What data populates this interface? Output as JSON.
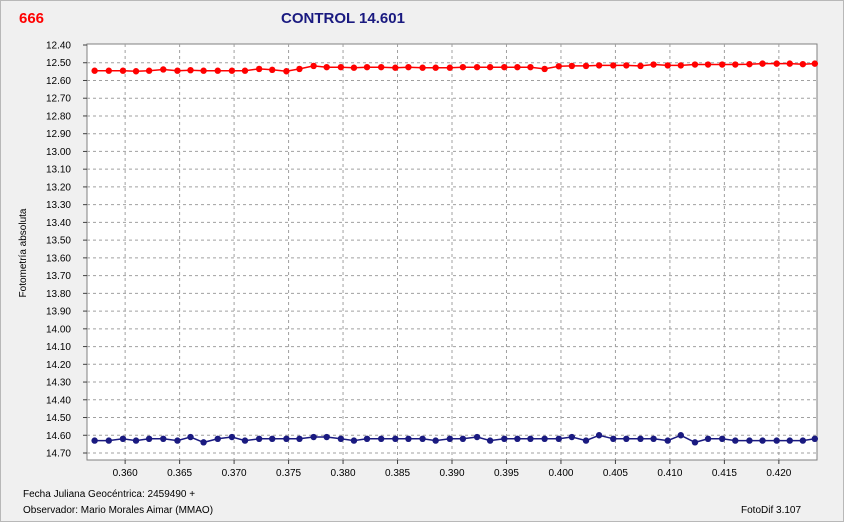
{
  "header": {
    "object_id": "666",
    "control_label": "CONTROL 14.601"
  },
  "footer": {
    "date_label": "Fecha Juliana Geocéntrica:  2459490 +",
    "observer_label": "Observador: Mario Morales Aimar (MMAO)",
    "software_label": "FotoDif 3.107"
  },
  "colors": {
    "object_series": "#ff0000",
    "control_series": "#1a1a80",
    "object_title": "#ff0000",
    "control_title": "#1a1a80",
    "grid": "#a0a0a0"
  },
  "chart_data": {
    "type": "line",
    "title": "CONTROL 14.601",
    "xlabel": "",
    "ylabel": "Fotometría absoluta",
    "xlim": [
      0.3565,
      0.4235
    ],
    "ylim": [
      12.4,
      14.7
    ],
    "y_inverted": true,
    "grid": true,
    "x_ticks": [
      "0.360",
      "0.365",
      "0.370",
      "0.375",
      "0.380",
      "0.385",
      "0.390",
      "0.395",
      "0.400",
      "0.405",
      "0.410",
      "0.415",
      "0.420"
    ],
    "y_ticks": [
      "12.40",
      "12.50",
      "12.60",
      "12.70",
      "12.80",
      "12.90",
      "13.00",
      "13.10",
      "13.20",
      "13.30",
      "13.40",
      "13.50",
      "13.60",
      "13.70",
      "13.80",
      "13.90",
      "14.00",
      "14.10",
      "14.20",
      "14.30",
      "14.40",
      "14.50",
      "14.60",
      "14.70"
    ],
    "series": [
      {
        "x": [
          0.3572,
          0.3585,
          0.3598,
          0.361,
          0.3622,
          0.3635,
          0.3648,
          0.366,
          0.3672,
          0.3685,
          0.3698,
          0.371,
          0.3723,
          0.3735,
          0.3748,
          0.376,
          0.3773,
          0.3785,
          0.3798,
          0.381,
          0.3822,
          0.3835,
          0.3848,
          0.386,
          0.3873,
          0.3885,
          0.3898,
          0.391,
          0.3923,
          0.3935,
          0.3948,
          0.396,
          0.3972,
          0.3985,
          0.3998,
          0.401,
          0.4023,
          0.4035,
          0.4048,
          0.406,
          0.4073,
          0.4085,
          0.4098,
          0.411,
          0.4123,
          0.4135,
          0.4148,
          0.416,
          0.4173,
          0.4185,
          0.4198,
          0.421,
          0.4222,
          0.4233
        ],
        "values": [
          12.545,
          12.545,
          12.545,
          12.548,
          12.545,
          12.538,
          12.545,
          12.542,
          12.545,
          12.545,
          12.545,
          12.545,
          12.535,
          12.54,
          12.548,
          12.535,
          12.518,
          12.525,
          12.525,
          12.528,
          12.525,
          12.525,
          12.528,
          12.525,
          12.528,
          12.528,
          12.528,
          12.525,
          12.525,
          12.525,
          12.525,
          12.525,
          12.525,
          12.535,
          12.52,
          12.518,
          12.518,
          12.515,
          12.515,
          12.515,
          12.518,
          12.51,
          12.515,
          12.515,
          12.51,
          12.51,
          12.51,
          12.51,
          12.508,
          12.505,
          12.505,
          12.505,
          12.508,
          12.505
        ]
      },
      {
        "x": [
          0.3572,
          0.3585,
          0.3598,
          0.361,
          0.3622,
          0.3635,
          0.3648,
          0.366,
          0.3672,
          0.3685,
          0.3698,
          0.371,
          0.3723,
          0.3735,
          0.3748,
          0.376,
          0.3773,
          0.3785,
          0.3798,
          0.381,
          0.3822,
          0.3835,
          0.3848,
          0.386,
          0.3873,
          0.3885,
          0.3898,
          0.391,
          0.3923,
          0.3935,
          0.3948,
          0.396,
          0.3972,
          0.3985,
          0.3998,
          0.401,
          0.4023,
          0.4035,
          0.4048,
          0.406,
          0.4073,
          0.4085,
          0.4098,
          0.411,
          0.4123,
          0.4135,
          0.4148,
          0.416,
          0.4173,
          0.4185,
          0.4198,
          0.421,
          0.4222,
          0.4233
        ],
        "values": [
          14.63,
          14.63,
          14.62,
          14.63,
          14.62,
          14.62,
          14.63,
          14.61,
          14.64,
          14.62,
          14.61,
          14.63,
          14.62,
          14.62,
          14.62,
          14.62,
          14.61,
          14.61,
          14.62,
          14.63,
          14.62,
          14.62,
          14.62,
          14.62,
          14.62,
          14.63,
          14.62,
          14.62,
          14.61,
          14.63,
          14.62,
          14.62,
          14.62,
          14.62,
          14.62,
          14.61,
          14.63,
          14.6,
          14.62,
          14.62,
          14.62,
          14.62,
          14.63,
          14.6,
          14.64,
          14.62,
          14.62,
          14.63,
          14.63,
          14.63,
          14.63,
          14.63,
          14.63,
          14.62
        ]
      }
    ]
  }
}
